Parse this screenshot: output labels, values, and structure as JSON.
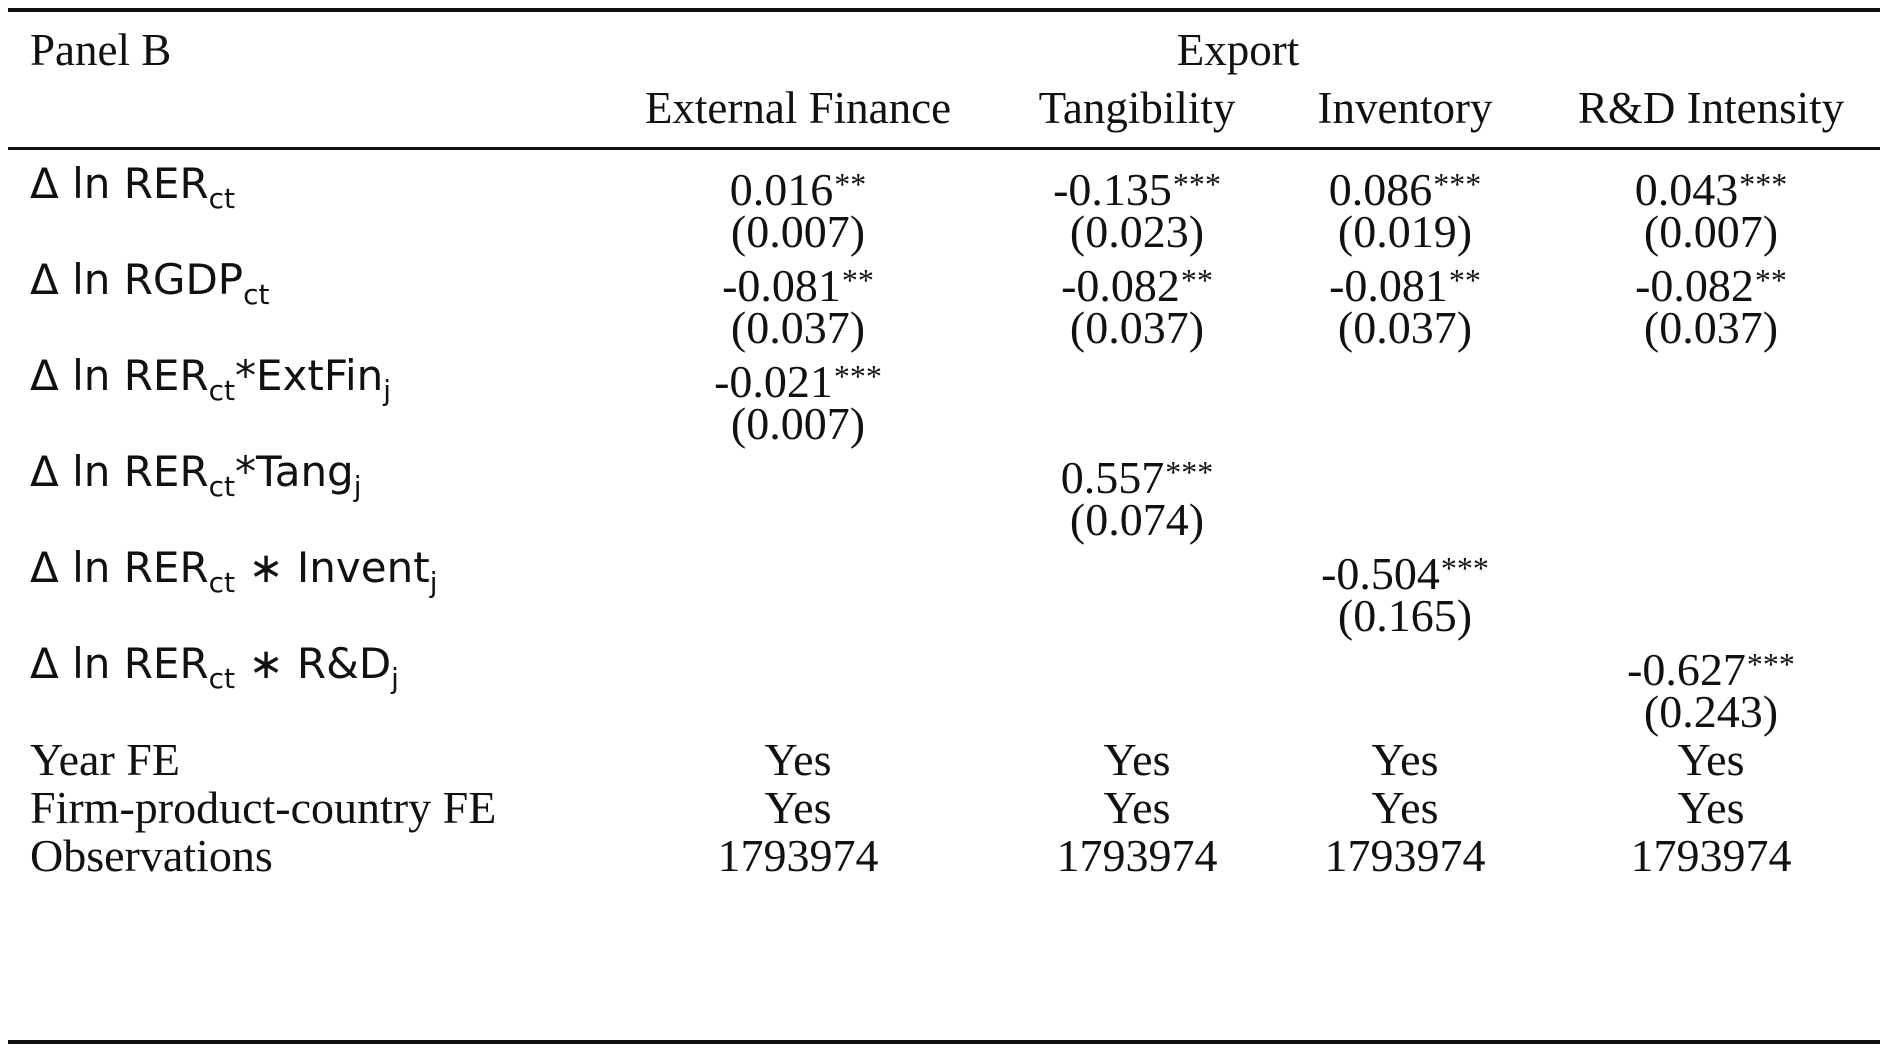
{
  "panel_label": "Panel B",
  "dependent_variable": "Export",
  "columns": [
    "External Finance",
    "Tangibility",
    "Inventory",
    "R&D Intensity"
  ],
  "rows": [
    {
      "label_base": "Δ ln RER",
      "label_sub": "ct",
      "label_rest": "",
      "label_sub2": "",
      "coefs": [
        "0.016",
        "-0.135",
        "0.086",
        "0.043"
      ],
      "stars": [
        "**",
        "***",
        "***",
        "***"
      ],
      "ses": [
        "(0.007)",
        "(0.023)",
        "(0.019)",
        "(0.007)"
      ]
    },
    {
      "label_base": "Δ ln RGDP",
      "label_sub": "ct",
      "label_rest": "",
      "label_sub2": "",
      "coefs": [
        "-0.081",
        "-0.082",
        "-0.081",
        "-0.082"
      ],
      "stars": [
        "**",
        "**",
        "**",
        "**"
      ],
      "ses": [
        "(0.037)",
        "(0.037)",
        "(0.037)",
        "(0.037)"
      ]
    },
    {
      "label_base": "Δ ln RER",
      "label_sub": "ct",
      "label_rest": "*ExtFin",
      "label_sub2": "j",
      "coefs": [
        "-0.021",
        "",
        "",
        ""
      ],
      "stars": [
        "***",
        "",
        "",
        ""
      ],
      "ses": [
        "(0.007)",
        "",
        "",
        ""
      ]
    },
    {
      "label_base": "Δ ln RER",
      "label_sub": "ct",
      "label_rest": "*Tang",
      "label_sub2": "j",
      "coefs": [
        "",
        "0.557",
        "",
        ""
      ],
      "stars": [
        "",
        "***",
        "",
        ""
      ],
      "ses": [
        "",
        "(0.074)",
        "",
        ""
      ]
    },
    {
      "label_base": "Δ ln RER",
      "label_sub": "ct",
      "label_rest": " ∗ Invent",
      "label_sub2": "j",
      "coefs": [
        "",
        "",
        "-0.504",
        ""
      ],
      "stars": [
        "",
        "",
        "***",
        ""
      ],
      "ses": [
        "",
        "",
        "(0.165)",
        ""
      ]
    },
    {
      "label_base": "Δ ln RER",
      "label_sub": "ct",
      "label_rest": " ∗ R&D",
      "label_sub2": "j",
      "coefs": [
        "",
        "",
        "",
        "-0.627"
      ],
      "stars": [
        "",
        "",
        "",
        "***"
      ],
      "ses": [
        "",
        "",
        "",
        "(0.243)"
      ]
    }
  ],
  "footer_rows": [
    {
      "label": "Year FE",
      "values": [
        "Yes",
        "Yes",
        "Yes",
        "Yes"
      ]
    },
    {
      "label": "Firm-product-country FE",
      "values": [
        "Yes",
        "Yes",
        "Yes",
        "Yes"
      ]
    },
    {
      "label": "Observations",
      "values": [
        "1793974",
        "1793974",
        "1793974",
        "1793974"
      ]
    }
  ]
}
